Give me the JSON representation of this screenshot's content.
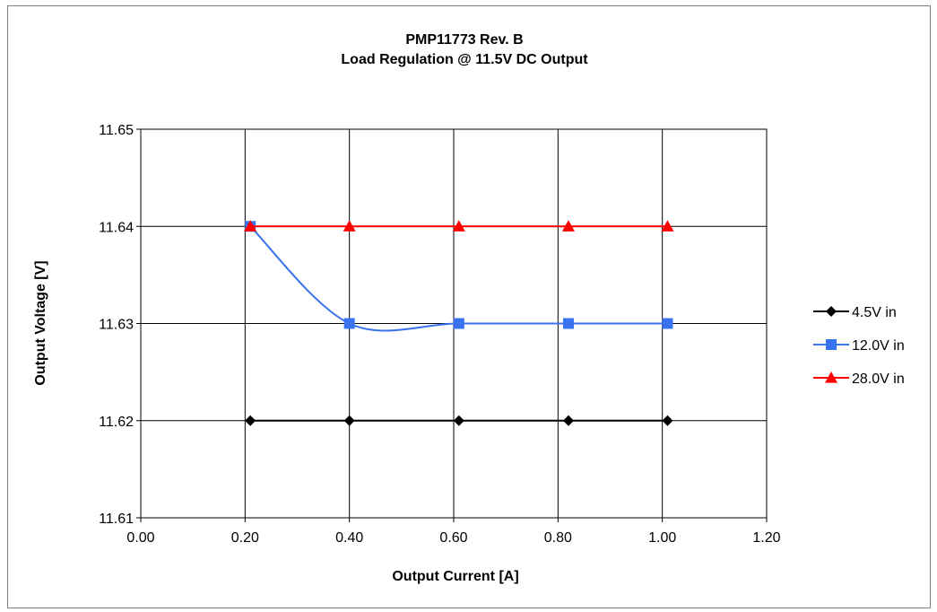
{
  "chart_data": {
    "type": "line",
    "title": "PMP11773 Rev. B",
    "subtitle": "Load Regulation @ 11.5V DC Output",
    "xlabel": "Output Current [A]",
    "ylabel": "Output Voltage  [V]",
    "xlim": [
      0.0,
      1.2
    ],
    "ylim": [
      11.61,
      11.65
    ],
    "x_ticks": [
      "0.00",
      "0.20",
      "0.40",
      "0.60",
      "0.80",
      "1.00",
      "1.20"
    ],
    "y_ticks": [
      "11.61",
      "11.62",
      "11.63",
      "11.64",
      "11.65"
    ],
    "grid": true,
    "legend_position": "right",
    "series": [
      {
        "name": "4.5V in",
        "color": "#000000",
        "marker": "diamond",
        "x": [
          0.21,
          0.4,
          0.61,
          0.82,
          1.01
        ],
        "y": [
          11.62,
          11.62,
          11.62,
          11.62,
          11.62
        ]
      },
      {
        "name": "12.0V in",
        "color": "#3a73f0",
        "marker": "square",
        "x": [
          0.21,
          0.4,
          0.61,
          0.82,
          1.01
        ],
        "y": [
          11.64,
          11.63,
          11.63,
          11.63,
          11.63
        ]
      },
      {
        "name": "28.0V in",
        "color": "#ff0000",
        "marker": "triangle",
        "x": [
          0.21,
          0.4,
          0.61,
          0.82,
          1.01
        ],
        "y": [
          11.64,
          11.64,
          11.64,
          11.64,
          11.64
        ]
      }
    ]
  }
}
